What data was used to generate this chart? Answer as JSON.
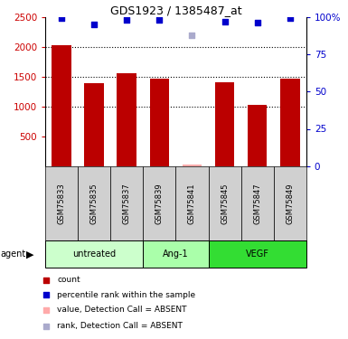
{
  "title": "GDS1923 / 1385487_at",
  "samples": [
    "GSM75833",
    "GSM75835",
    "GSM75837",
    "GSM75839",
    "GSM75841",
    "GSM75845",
    "GSM75847",
    "GSM75849"
  ],
  "bar_values": [
    2030,
    1390,
    1550,
    1460,
    30,
    1405,
    1030,
    1460
  ],
  "bar_absent": [
    false,
    false,
    false,
    false,
    true,
    false,
    false,
    false
  ],
  "rank_values": [
    99,
    95,
    98,
    98,
    88,
    97,
    96,
    99
  ],
  "rank_absent": [
    false,
    false,
    false,
    false,
    true,
    false,
    false,
    false
  ],
  "groups": [
    {
      "label": "untreated",
      "start": 0,
      "end": 3,
      "color": "#ccffcc"
    },
    {
      "label": "Ang-1",
      "start": 3,
      "end": 5,
      "color": "#aaffaa"
    },
    {
      "label": "VEGF",
      "start": 5,
      "end": 8,
      "color": "#33dd33"
    }
  ],
  "ylim_left": [
    0,
    2500
  ],
  "ylim_right": [
    0,
    100
  ],
  "yticks_left": [
    500,
    1000,
    1500,
    2000,
    2500
  ],
  "yticks_right": [
    0,
    25,
    50,
    75,
    100
  ],
  "bar_color": "#bb0000",
  "bar_absent_color": "#ffaaaa",
  "rank_color": "#0000cc",
  "rank_absent_color": "#aaaacc",
  "label_color_left": "#cc0000",
  "label_color_right": "#0000cc",
  "agent_label": "agent",
  "legend_items": [
    {
      "color": "#bb0000",
      "label": "count"
    },
    {
      "color": "#0000cc",
      "label": "percentile rank within the sample"
    },
    {
      "color": "#ffaaaa",
      "label": "value, Detection Call = ABSENT"
    },
    {
      "color": "#aaaacc",
      "label": "rank, Detection Call = ABSENT"
    }
  ]
}
